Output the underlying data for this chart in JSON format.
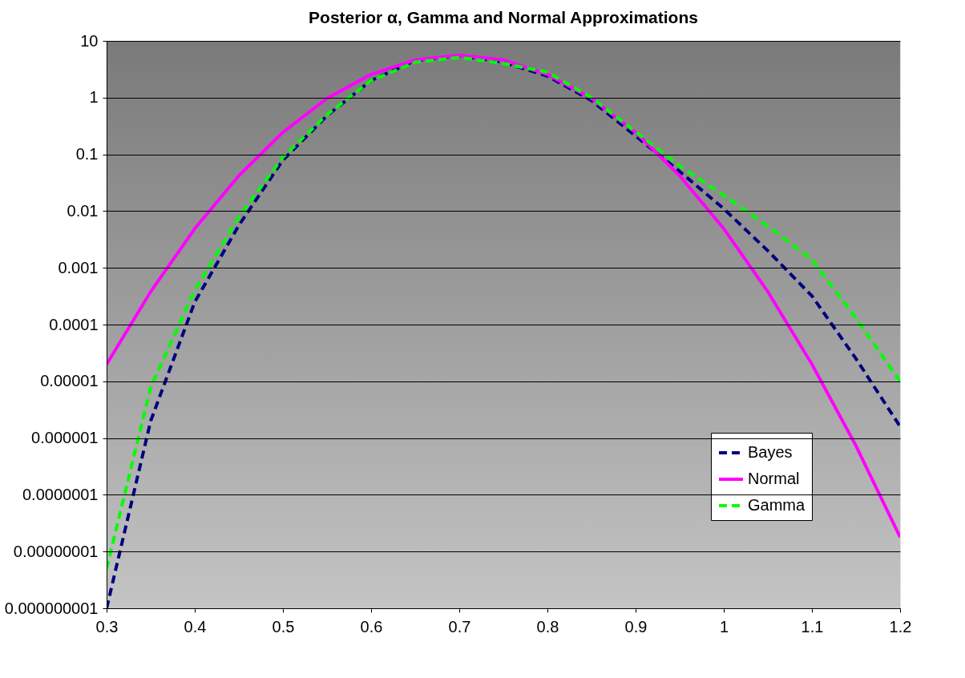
{
  "chart_data": {
    "type": "line",
    "title": "Posterior α, Gamma and Normal Approximations",
    "x": [
      0.3,
      0.35,
      0.4,
      0.45,
      0.5,
      0.55,
      0.6,
      0.65,
      0.7,
      0.75,
      0.8,
      0.85,
      0.9,
      0.95,
      1.0,
      1.05,
      1.1,
      1.15,
      1.2
    ],
    "series": [
      {
        "name": "Bayes",
        "color": "#000080",
        "line_style": "dashed",
        "values": [
          1e-09,
          2e-06,
          0.00025,
          0.0056,
          0.079,
          0.48,
          2.0,
          4.5,
          5.5,
          4.2,
          2.4,
          0.89,
          0.21,
          0.05,
          0.011,
          0.002,
          0.00032,
          2.5e-05,
          1.6e-06
        ]
      },
      {
        "name": "Normal",
        "color": "#ff00ff",
        "line_style": "solid",
        "values": [
          2e-05,
          0.00038,
          0.0049,
          0.042,
          0.245,
          0.97,
          2.57,
          4.62,
          5.62,
          4.62,
          2.57,
          0.97,
          0.245,
          0.042,
          0.0049,
          0.00038,
          2e-05,
          7.3e-07,
          1.8e-08
        ]
      },
      {
        "name": "Gamma",
        "color": "#00ff00",
        "line_style": "dashed",
        "values": [
          5e-09,
          7.9e-06,
          0.0004,
          0.0079,
          0.089,
          0.5,
          2.0,
          4.2,
          5.1,
          4.0,
          2.8,
          1.0,
          0.25,
          0.063,
          0.019,
          0.0054,
          0.0014,
          0.00013,
          1e-05
        ]
      }
    ],
    "log": "y",
    "xlim": [
      0.3,
      1.2
    ],
    "xticks": [
      0.3,
      0.4,
      0.5,
      0.6,
      0.7,
      0.8,
      0.9,
      1,
      1.1,
      1.2
    ],
    "ylim": [
      1e-09,
      10
    ],
    "yticks": [
      {
        "value": 1e-09,
        "label": "0.000000001"
      },
      {
        "value": 1e-08,
        "label": "0.00000001"
      },
      {
        "value": 1e-07,
        "label": "0.0000001"
      },
      {
        "value": 1e-06,
        "label": "0.000001"
      },
      {
        "value": 1e-05,
        "label": "0.00001"
      },
      {
        "value": 0.0001,
        "label": "0.0001"
      },
      {
        "value": 0.001,
        "label": "0.001"
      },
      {
        "value": 0.01,
        "label": "0.01"
      },
      {
        "value": 0.1,
        "label": "0.1"
      },
      {
        "value": 1,
        "label": "1"
      },
      {
        "value": 10,
        "label": "10"
      }
    ],
    "grid": "y",
    "legend": "bottom right"
  }
}
